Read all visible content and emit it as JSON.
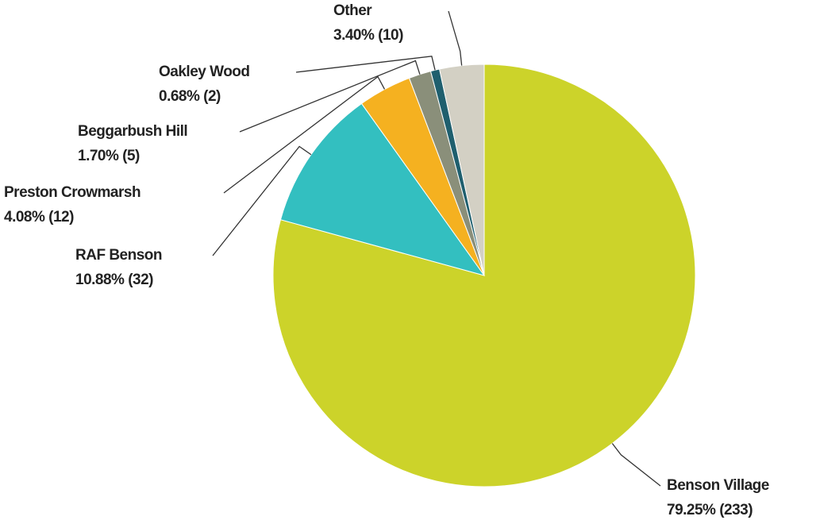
{
  "chart_data": {
    "type": "pie",
    "categories": [
      "Benson Village",
      "RAF Benson",
      "Preston Crowmarsh",
      "Beggarbush Hill",
      "Oakley Wood",
      "Other"
    ],
    "values": [
      79.25,
      10.88,
      4.08,
      1.7,
      0.68,
      3.4
    ],
    "value_labels": [
      "79.25% (233)",
      "10.88% (32)",
      "4.08% (12)",
      "1.70% (5)",
      "0.68% (2)",
      "3.40% (10)"
    ],
    "colors": [
      "#ccd32a",
      "#33bfc0",
      "#f5b120",
      "#8a8f7a",
      "#1f5f6e",
      "#d3d0c4"
    ]
  }
}
